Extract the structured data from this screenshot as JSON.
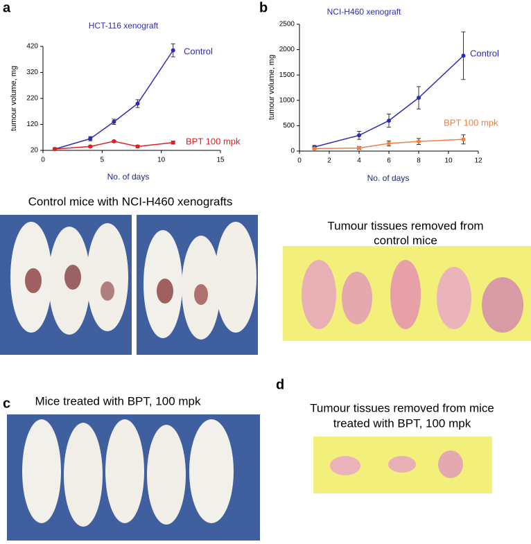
{
  "chart_data": [
    {
      "type": "line",
      "panel": "a",
      "title": "HCT-116 xenograft",
      "xlabel": "No. of days",
      "ylabel": "tumour volume, mg",
      "xlim": [
        0,
        15
      ],
      "xticks": [
        0,
        5,
        10,
        15
      ],
      "ylim": [
        20,
        420
      ],
      "yticks": [
        20,
        120,
        220,
        320,
        420
      ],
      "x": [
        1,
        4,
        6,
        8,
        11
      ],
      "series": [
        {
          "name": "Control",
          "color": "#2b2bb8",
          "values": [
            25,
            65,
            130,
            200,
            405
          ],
          "errors": [
            5,
            8,
            10,
            15,
            25
          ]
        },
        {
          "name": "BPT 100 mpk",
          "color": "#e02020",
          "values": [
            25,
            35,
            55,
            35,
            50
          ],
          "errors": [
            3,
            4,
            4,
            5,
            6
          ]
        }
      ]
    },
    {
      "type": "line",
      "panel": "b",
      "title": "NCI-H460 xenograft",
      "xlabel": "No. of days",
      "ylabel": "tumour volume, mg",
      "xlim": [
        0,
        12
      ],
      "xticks": [
        0,
        2,
        4,
        6,
        8,
        10,
        12
      ],
      "ylim": [
        0,
        2500
      ],
      "yticks": [
        0,
        500,
        1000,
        1500,
        2000,
        2500
      ],
      "x": [
        1,
        4,
        6,
        8,
        11
      ],
      "series": [
        {
          "name": "Control",
          "color": "#2b2bb8",
          "values": [
            80,
            310,
            600,
            1050,
            1880
          ],
          "errors": [
            30,
            80,
            130,
            220,
            470
          ]
        },
        {
          "name": "BPT 100 mpk",
          "color": "#f08040",
          "values": [
            50,
            60,
            150,
            190,
            230
          ],
          "errors": [
            20,
            30,
            50,
            60,
            90
          ]
        }
      ]
    }
  ],
  "figure": {
    "control_mice_caption": "Control mice with NCI-H460 xenografts",
    "control_tissue_caption": [
      "Tumour tissues removed from",
      "control mice"
    ],
    "panel_c": "c",
    "treated_mice_caption": "Mice treated with BPT, 100 mpk",
    "panel_d": "d",
    "treated_tissue_caption": [
      "Tumour tissues removed from mice",
      "treated with BPT, 100 mpk"
    ]
  }
}
